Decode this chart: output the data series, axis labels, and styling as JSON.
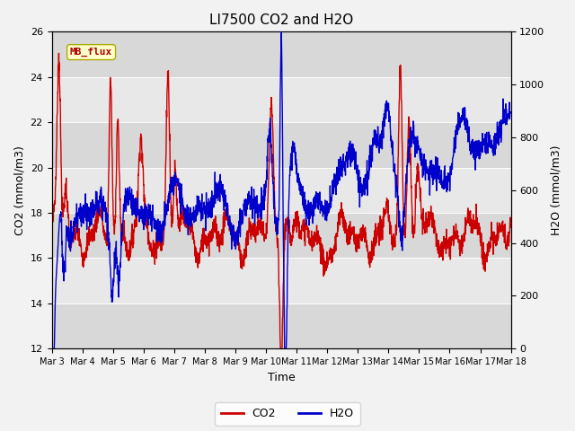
{
  "title": "LI7500 CO2 and H2O",
  "xlabel": "Time",
  "ylabel_left": "CO2 (mmol/m3)",
  "ylabel_right": "H2O (mmol/m3)",
  "co2_color": "#CC0000",
  "h2o_color": "#0000CC",
  "ylim_left": [
    12,
    26
  ],
  "ylim_right": [
    0,
    1200
  ],
  "yticks_left": [
    12,
    14,
    16,
    18,
    20,
    22,
    24,
    26
  ],
  "yticks_right": [
    0,
    200,
    400,
    600,
    800,
    1000,
    1200
  ],
  "xtick_labels": [
    "Mar 3",
    "Mar 4",
    "Mar 5",
    "Mar 6",
    "Mar 7",
    "Mar 8",
    "Mar 9",
    "Mar 10",
    "Mar 11",
    "Mar 12",
    "Mar 13",
    "Mar 14",
    "Mar 15",
    "Mar 16",
    "Mar 17",
    "Mar 18"
  ],
  "bg_color": "#D8D8D8",
  "band_color": "#E8E8E8",
  "fig_bg": "#F2F2F2",
  "annotation_text": "MB_flux",
  "legend_co2": "CO2",
  "legend_h2o": "H2O",
  "title_fontsize": 11,
  "label_fontsize": 9,
  "tick_fontsize": 8,
  "line_width": 1.0
}
